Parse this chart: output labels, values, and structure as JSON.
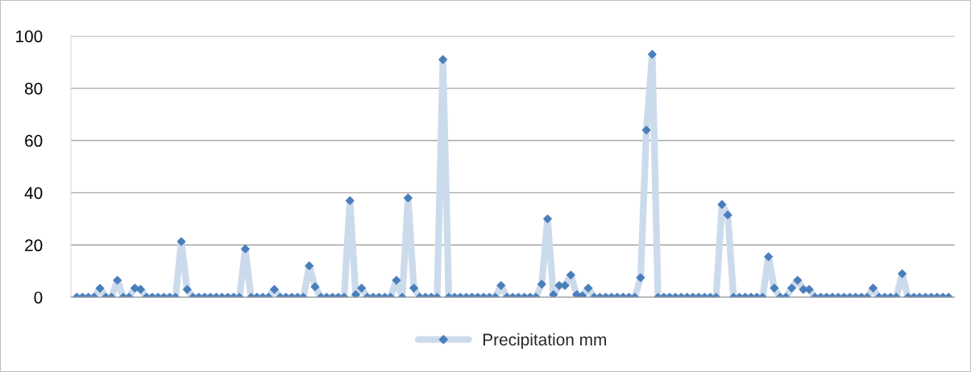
{
  "chart_data": {
    "type": "line",
    "categories": [
      null,
      null,
      null,
      null,
      null,
      null,
      null,
      null,
      null,
      null,
      null,
      null,
      null,
      null,
      null,
      null,
      null,
      null,
      null,
      null,
      null,
      null,
      null,
      null,
      null,
      null,
      null,
      null,
      null,
      null,
      null,
      null,
      null,
      null,
      null,
      null,
      null,
      null,
      null,
      null,
      null,
      null,
      null,
      null,
      null,
      null,
      null,
      null,
      null,
      null,
      null,
      null,
      null,
      null,
      null,
      null,
      null,
      null,
      null,
      null,
      null,
      null,
      null,
      null,
      null,
      null,
      null,
      null,
      null,
      null,
      null,
      null,
      null,
      null,
      null,
      null,
      null,
      null,
      null,
      null,
      null,
      null,
      null,
      null,
      null,
      null,
      null,
      null,
      null,
      null,
      null,
      null,
      null,
      null,
      null,
      null,
      null,
      null,
      null,
      null,
      null,
      null,
      null,
      null,
      null,
      null,
      null,
      null,
      null,
      null,
      null,
      null,
      null,
      null,
      null,
      null,
      null,
      null,
      null,
      null,
      null,
      null,
      null,
      null,
      null,
      null,
      null,
      null,
      null,
      null,
      null,
      null,
      null,
      null,
      null,
      null,
      null,
      null,
      null,
      null,
      null,
      null,
      null,
      null,
      null,
      null,
      null,
      null,
      null,
      null,
      null
    ],
    "series": [
      {
        "name": "Precipitation mm",
        "color": "#4a7ebb",
        "values": [
          0,
          0,
          0,
          0,
          3.4,
          0,
          0,
          6.5,
          0,
          0,
          3.5,
          3,
          0,
          0,
          0,
          0,
          0,
          0,
          21.3,
          3,
          0,
          0,
          0,
          0,
          0,
          0,
          0,
          0,
          0,
          18.5,
          0,
          0,
          0,
          0,
          3,
          0,
          0,
          0,
          0,
          0,
          12,
          4,
          0,
          0,
          0,
          0,
          0,
          37,
          1,
          3.5,
          0,
          0,
          0,
          0,
          0,
          6.5,
          0,
          38,
          3.5,
          0,
          0,
          0,
          0,
          91,
          0,
          0,
          0,
          0,
          0,
          0,
          0,
          0,
          0,
          4.5,
          0,
          0,
          0,
          0,
          0,
          0,
          5,
          30,
          1,
          4.5,
          4.5,
          8.5,
          1,
          0.5,
          3.5,
          0,
          0,
          0,
          0,
          0,
          0,
          0,
          0,
          7.5,
          64,
          93,
          0,
          0,
          0,
          0,
          0,
          0,
          0,
          0,
          0,
          0,
          0,
          35.5,
          31.5,
          0,
          0,
          0,
          0,
          0,
          0,
          15.5,
          3.5,
          0,
          0,
          3.5,
          6.5,
          3,
          3,
          0,
          0,
          0,
          0,
          0,
          0,
          0,
          0,
          0,
          0,
          3.5,
          0,
          0,
          0,
          0,
          9,
          0,
          0,
          0,
          0,
          0,
          0,
          0,
          0
        ]
      }
    ],
    "ylim": [
      0,
      100
    ],
    "yticks": [
      0,
      20,
      40,
      60,
      80,
      100
    ],
    "grid": "y",
    "legend": "bottom",
    "marker": "diamond",
    "line_style": "solid",
    "tick_labels": "y"
  }
}
